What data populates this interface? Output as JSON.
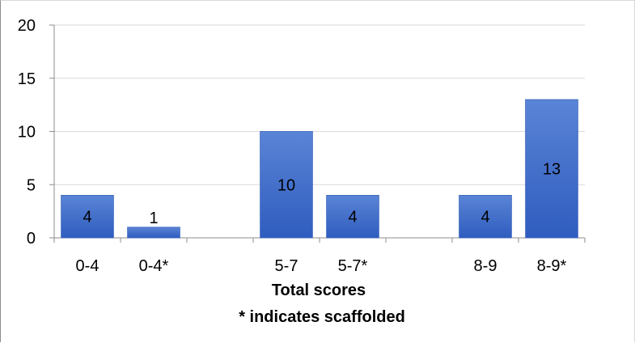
{
  "chart_data": {
    "type": "bar",
    "categories": [
      "0-4",
      "0-4*",
      "",
      "5-7",
      "5-7*",
      "",
      "8-9",
      "8-9*"
    ],
    "values": [
      4,
      1,
      null,
      10,
      4,
      null,
      4,
      13
    ],
    "data_labels": [
      "4",
      "1",
      "",
      "10",
      "4",
      "",
      "4",
      "13"
    ],
    "title": "",
    "xlabel": "Total scores",
    "xlabel_line2": "* indicates scaffolded",
    "ylabel": "",
    "ylim": [
      0,
      20
    ],
    "yticks": [
      0,
      5,
      10,
      15,
      20
    ],
    "grid": true,
    "legend": "none",
    "colors": {
      "bar_top": "#5a84d6",
      "bar_bottom": "#2f5dbf",
      "bar_border": "#3a63bd",
      "grid": "#d9d9d9",
      "axis": "#8c8c8c"
    }
  }
}
